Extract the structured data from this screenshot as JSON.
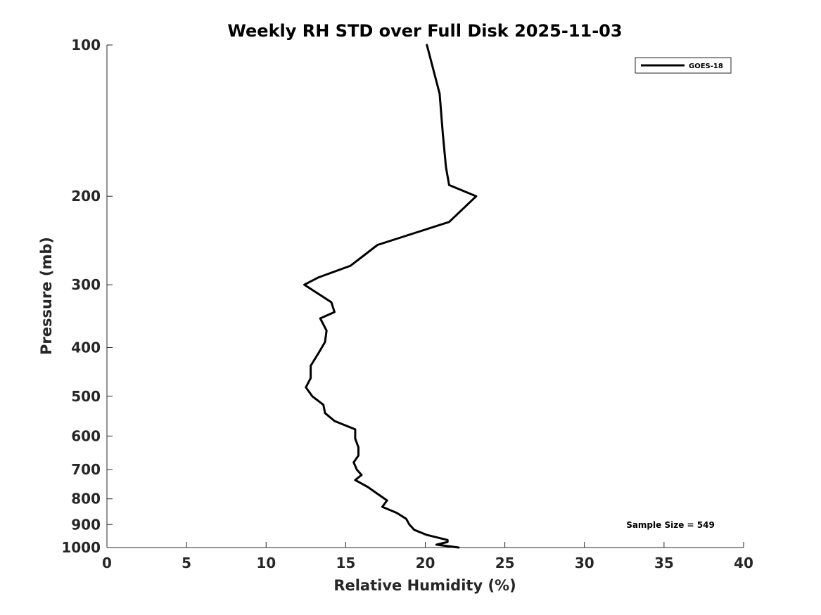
{
  "chart_data": {
    "type": "line",
    "title": "Weekly RH STD over Full Disk 2025-11-03",
    "xlabel": "Relative Humidity (%)",
    "ylabel": "Pressure (mb)",
    "xlim": [
      0,
      40
    ],
    "ylim": [
      100,
      1000
    ],
    "yscale": "log",
    "y_reversed": true,
    "grid": false,
    "xticks": [
      0,
      5,
      10,
      15,
      20,
      25,
      30,
      35,
      40
    ],
    "xtick_labels": [
      "0",
      "5",
      "10",
      "15",
      "20",
      "25",
      "30",
      "35",
      "40"
    ],
    "yticks": [
      100,
      200,
      300,
      400,
      500,
      600,
      700,
      800,
      900,
      1000
    ],
    "ytick_labels": [
      "100",
      "200",
      "300",
      "400",
      "500",
      "600",
      "700",
      "800",
      "900",
      "1000"
    ],
    "legend": {
      "position": "top-right",
      "entries": [
        "GOES-18"
      ]
    },
    "annotation": "Sample Size = 549",
    "series": [
      {
        "name": "GOES-18",
        "color": "#000000",
        "points": [
          [
            20.1,
            100
          ],
          [
            20.9,
            125
          ],
          [
            21.1,
            150
          ],
          [
            21.3,
            175
          ],
          [
            21.5,
            190
          ],
          [
            23.2,
            200
          ],
          [
            21.5,
            225
          ],
          [
            17.0,
            250
          ],
          [
            15.3,
            275
          ],
          [
            13.3,
            290
          ],
          [
            12.4,
            300
          ],
          [
            14.1,
            325
          ],
          [
            14.3,
            340
          ],
          [
            13.4,
            350
          ],
          [
            13.8,
            370
          ],
          [
            13.7,
            390
          ],
          [
            13.3,
            410
          ],
          [
            12.8,
            435
          ],
          [
            12.8,
            460
          ],
          [
            12.5,
            480
          ],
          [
            12.9,
            500
          ],
          [
            13.6,
            520
          ],
          [
            13.7,
            540
          ],
          [
            14.3,
            560
          ],
          [
            15.6,
            582
          ],
          [
            15.6,
            607
          ],
          [
            15.8,
            632
          ],
          [
            15.8,
            656
          ],
          [
            15.5,
            677
          ],
          [
            15.7,
            700
          ],
          [
            16.0,
            717
          ],
          [
            15.6,
            734
          ],
          [
            16.4,
            758
          ],
          [
            17.0,
            782
          ],
          [
            17.6,
            806
          ],
          [
            17.3,
            830
          ],
          [
            18.2,
            853
          ],
          [
            18.8,
            877
          ],
          [
            19.0,
            900
          ],
          [
            19.3,
            922
          ],
          [
            20.1,
            944
          ],
          [
            21.4,
            966
          ],
          [
            21.4,
            975
          ],
          [
            20.7,
            987
          ],
          [
            22.1,
            1000
          ]
        ]
      }
    ]
  }
}
